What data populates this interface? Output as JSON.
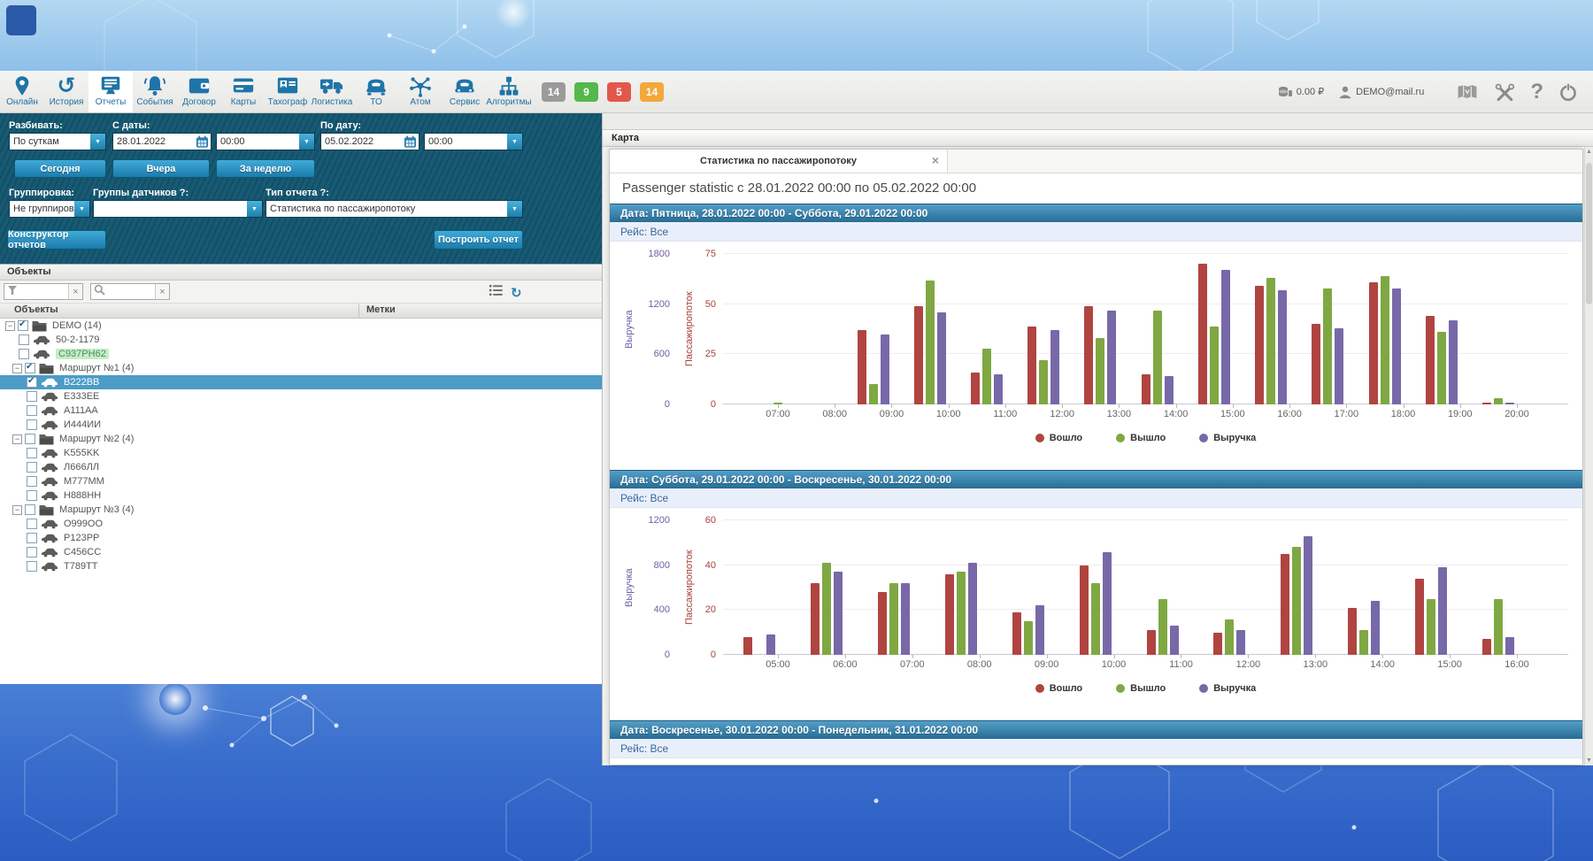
{
  "toolbar": {
    "items": [
      {
        "label": "Онлайн",
        "icon": "pin-icon",
        "active": false
      },
      {
        "label": "История",
        "icon": "history-icon",
        "active": false
      },
      {
        "label": "Отчеты",
        "icon": "reports-icon",
        "active": true
      },
      {
        "label": "События",
        "icon": "events-icon",
        "active": false
      },
      {
        "label": "Договор",
        "icon": "contract-icon",
        "active": false
      },
      {
        "label": "Карты",
        "icon": "cards-icon",
        "active": false
      },
      {
        "label": "Тахограф",
        "icon": "tachograph-icon",
        "active": false
      },
      {
        "label": "Логистика",
        "icon": "logistics-icon",
        "active": false
      },
      {
        "label": "ТО",
        "icon": "maintenance-icon",
        "active": false
      },
      {
        "label": "Атом",
        "icon": "atom-icon",
        "active": false
      },
      {
        "label": "Сервис",
        "icon": "service-icon",
        "active": false
      },
      {
        "label": "Алгоритмы",
        "icon": "algorithm-icon",
        "active": false
      }
    ],
    "badges": [
      {
        "value": "14",
        "color": "#9b9b9b"
      },
      {
        "value": "9",
        "color": "#54b84d"
      },
      {
        "value": "5",
        "color": "#e2574c"
      },
      {
        "value": "14",
        "color": "#f3a83b"
      }
    ],
    "balance": "0.00 ₽",
    "user_email": "DEMO@mail.ru",
    "right_icons": [
      "atlas-icon",
      "tools-icon",
      "help-icon",
      "power-icon"
    ]
  },
  "report_form": {
    "split_label": "Разбивать:",
    "split_value": "По суткам",
    "from_label": "С даты:",
    "from_date": "28.01.2022",
    "from_time": "00:00",
    "to_label": "По дату:",
    "to_date": "05.02.2022",
    "to_time": "00:00",
    "quick_buttons": [
      "Сегодня",
      "Вчера",
      "За неделю"
    ],
    "grouping_label": "Группировка:",
    "grouping_value": "Не группирова",
    "sensors_label": "Группы датчиков ?:",
    "sensors_value": "",
    "type_label": "Тип отчета ?:",
    "type_value": "Статистика по пассажиропотоку",
    "constructor_button": "Конструктор отчетов",
    "build_button": "Построить отчет"
  },
  "objects_panel": {
    "header": "Объекты",
    "columns": [
      "Объекты",
      "Метки"
    ],
    "tree": [
      {
        "label": "DEMO (14)",
        "type": "folder",
        "level": 0,
        "checked": true,
        "expanded": true
      },
      {
        "label": "50-2-1179",
        "type": "vehicle",
        "level": 1,
        "checked": false
      },
      {
        "label": "C937PH62",
        "type": "vehicle",
        "level": 1,
        "checked": false,
        "highlight": true
      },
      {
        "label": "Маршрут №1 (4)",
        "type": "folder",
        "level": 1,
        "checked": true,
        "expanded": true
      },
      {
        "label": "B222BB",
        "type": "vehicle",
        "level": 2,
        "checked": true,
        "selected": true
      },
      {
        "label": "E333EE",
        "type": "vehicle",
        "level": 2,
        "checked": false
      },
      {
        "label": "A111AA",
        "type": "vehicle",
        "level": 2,
        "checked": false
      },
      {
        "label": "И444ИИ",
        "type": "vehicle",
        "level": 2,
        "checked": false
      },
      {
        "label": "Маршрут №2 (4)",
        "type": "folder",
        "level": 1,
        "checked": false,
        "expanded": true
      },
      {
        "label": "K555KK",
        "type": "vehicle",
        "level": 2,
        "checked": false
      },
      {
        "label": "Л666ЛЛ",
        "type": "vehicle",
        "level": 2,
        "checked": false
      },
      {
        "label": "M777MM",
        "type": "vehicle",
        "level": 2,
        "checked": false
      },
      {
        "label": "H888HH",
        "type": "vehicle",
        "level": 2,
        "checked": false
      },
      {
        "label": "Маршрут №3 (4)",
        "type": "folder",
        "level": 1,
        "checked": false,
        "expanded": true
      },
      {
        "label": "O999OO",
        "type": "vehicle",
        "level": 2,
        "checked": false
      },
      {
        "label": "P123PP",
        "type": "vehicle",
        "level": 2,
        "checked": false
      },
      {
        "label": "C456CC",
        "type": "vehicle",
        "level": 2,
        "checked": false
      },
      {
        "label": "T789TT",
        "type": "vehicle",
        "level": 2,
        "checked": false
      }
    ]
  },
  "map_panel": {
    "header": "Карта",
    "tab_title": "Статистика по пассажиропотоку",
    "close_glyph": "×",
    "summary": "Passenger statistic с 28.01.2022 00:00 по 05.02.2022 00:00"
  },
  "chart_data": [
    {
      "type": "bar",
      "title": "Дата: Пятница, 28.01.2022 00:00 - Суббота, 29.01.2022 00:00",
      "subtitle": "Рейс: Все",
      "y_left": {
        "label": "Выручка",
        "ticks": [
          0,
          600,
          1200,
          1800
        ],
        "max": 1800,
        "color": "#6e5fa3"
      },
      "y_right": {
        "label": "Пассажиропоток",
        "ticks": [
          0,
          25,
          50,
          75
        ],
        "max": 75,
        "color": "#a8403c"
      },
      "x_ticks": [
        "07:00",
        "08:00",
        "09:00",
        "10:00",
        "11:00",
        "12:00",
        "13:00",
        "14:00",
        "15:00",
        "16:00",
        "17:00",
        "18:00",
        "19:00",
        "20:00"
      ],
      "series": [
        {
          "name": "Вошло",
          "color": "#b04441"
        },
        {
          "name": "Вышло",
          "color": "#7fa843"
        },
        {
          "name": "Выручка",
          "color": "#7769a8"
        }
      ],
      "values_axis": "right",
      "groups": [
        {
          "end_tick": "07:00",
          "at_tick": true,
          "values": [
            0,
            1,
            0
          ]
        },
        {
          "end_tick": "09:00",
          "values": [
            37,
            10,
            35
          ]
        },
        {
          "end_tick": "10:00",
          "values": [
            49,
            62,
            46
          ]
        },
        {
          "end_tick": "11:00",
          "values": [
            16,
            28,
            15
          ]
        },
        {
          "end_tick": "12:00",
          "values": [
            39,
            22,
            37
          ]
        },
        {
          "end_tick": "13:00",
          "values": [
            49,
            33,
            47
          ]
        },
        {
          "end_tick": "14:00",
          "values": [
            15,
            47,
            14
          ]
        },
        {
          "end_tick": "15:00",
          "values": [
            70,
            39,
            67
          ]
        },
        {
          "end_tick": "16:00",
          "values": [
            59,
            63,
            57
          ]
        },
        {
          "end_tick": "17:00",
          "values": [
            40,
            58,
            38
          ]
        },
        {
          "end_tick": "18:00",
          "values": [
            61,
            64,
            58
          ]
        },
        {
          "end_tick": "19:00",
          "values": [
            44,
            36,
            42
          ]
        },
        {
          "end_tick": "20:00",
          "values": [
            1,
            3,
            1
          ]
        }
      ],
      "legend": [
        "Вошло",
        "Вышло",
        "Выручка"
      ],
      "grid": true
    },
    {
      "type": "bar",
      "title": "Дата: Суббота, 29.01.2022 00:00 - Воскресенье, 30.01.2022 00:00",
      "subtitle": "Рейс: Все",
      "y_left": {
        "label": "Выручка",
        "ticks": [
          0,
          400,
          800,
          1200
        ],
        "max": 1200,
        "color": "#6e5fa3"
      },
      "y_right": {
        "label": "Пассажиропоток",
        "ticks": [
          0,
          20,
          40,
          60
        ],
        "max": 60,
        "color": "#a8403c"
      },
      "x_ticks": [
        "05:00",
        "06:00",
        "07:00",
        "08:00",
        "09:00",
        "10:00",
        "11:00",
        "12:00",
        "13:00",
        "14:00",
        "15:00",
        "16:00"
      ],
      "series": [
        {
          "name": "Вошло",
          "color": "#b04441"
        },
        {
          "name": "Вышло",
          "color": "#7fa843"
        },
        {
          "name": "Выручка",
          "color": "#7769a8"
        }
      ],
      "values_axis": "right",
      "groups": [
        {
          "end_tick": "05:00",
          "values": [
            8,
            0,
            9
          ]
        },
        {
          "end_tick": "06:00",
          "values": [
            32,
            41,
            37
          ]
        },
        {
          "end_tick": "07:00",
          "values": [
            28,
            32,
            32
          ]
        },
        {
          "end_tick": "08:00",
          "values": [
            36,
            37,
            41
          ]
        },
        {
          "end_tick": "09:00",
          "values": [
            19,
            15,
            22
          ]
        },
        {
          "end_tick": "10:00",
          "values": [
            40,
            32,
            46
          ]
        },
        {
          "end_tick": "11:00",
          "values": [
            11,
            25,
            13
          ]
        },
        {
          "end_tick": "12:00",
          "values": [
            10,
            16,
            11
          ]
        },
        {
          "end_tick": "13:00",
          "values": [
            45,
            48,
            53
          ]
        },
        {
          "end_tick": "14:00",
          "values": [
            21,
            11,
            24
          ]
        },
        {
          "end_tick": "15:00",
          "values": [
            34,
            25,
            39
          ]
        },
        {
          "end_tick": "16:00",
          "values": [
            7,
            25,
            8
          ]
        }
      ],
      "legend": [
        "Вошло",
        "Вышло",
        "Выручка"
      ],
      "grid": true
    },
    {
      "type": "bar",
      "title": "Дата: Воскресенье, 30.01.2022 00:00 - Понедельник, 31.01.2022 00:00",
      "subtitle": "Рейс: Все",
      "groups": []
    }
  ]
}
